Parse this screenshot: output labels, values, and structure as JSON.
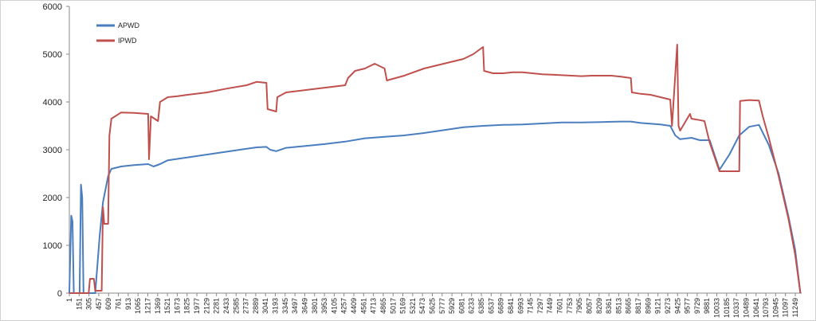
{
  "chart_data": {
    "type": "line",
    "title": "",
    "xlabel": "",
    "ylabel": "",
    "xlim": [
      1,
      11300
    ],
    "ylim": [
      0,
      6000
    ],
    "grid": false,
    "legend": "top-left",
    "y_ticks": [
      "0",
      "1000",
      "2000",
      "3000",
      "4000",
      "5000",
      "6000"
    ],
    "x_tick_labels": [
      "1",
      "151",
      "305",
      "457",
      "609",
      "761",
      "913",
      "1065",
      "1217",
      "1369",
      "1521",
      "1673",
      "1825",
      "1977",
      "2129",
      "2281",
      "2433",
      "2585",
      "2737",
      "2889",
      "3041",
      "3193",
      "3345",
      "3497",
      "3649",
      "3801",
      "3953",
      "4105",
      "4257",
      "4409",
      "4561",
      "4713",
      "4865",
      "5017",
      "5169",
      "5321",
      "5473",
      "5625",
      "5777",
      "5929",
      "6081",
      "6233",
      "6385",
      "6537",
      "6689",
      "6841",
      "6993",
      "7145",
      "7297",
      "7449",
      "7601",
      "7753",
      "7905",
      "8057",
      "8209",
      "8361",
      "8513",
      "8665",
      "8817",
      "8969",
      "9121",
      "9273",
      "9425",
      "9577",
      "9729",
      "9881",
      "10033",
      "10185",
      "10337",
      "10489",
      "10641",
      "10793",
      "10945",
      "11097",
      "11249"
    ],
    "series": [
      {
        "name": "APWD",
        "color": "#4a7ebf",
        "points": [
          [
            1,
            0
          ],
          [
            30,
            1620
          ],
          [
            50,
            1500
          ],
          [
            70,
            0
          ],
          [
            160,
            0
          ],
          [
            180,
            2270
          ],
          [
            200,
            2000
          ],
          [
            220,
            0
          ],
          [
            400,
            0
          ],
          [
            470,
            1200
          ],
          [
            520,
            1900
          ],
          [
            600,
            2450
          ],
          [
            650,
            2600
          ],
          [
            800,
            2650
          ],
          [
            1000,
            2680
          ],
          [
            1217,
            2700
          ],
          [
            1300,
            2650
          ],
          [
            1400,
            2700
          ],
          [
            1521,
            2780
          ],
          [
            1825,
            2840
          ],
          [
            2129,
            2900
          ],
          [
            2433,
            2960
          ],
          [
            2737,
            3020
          ],
          [
            2889,
            3050
          ],
          [
            3041,
            3060
          ],
          [
            3100,
            3000
          ],
          [
            3193,
            2970
          ],
          [
            3345,
            3040
          ],
          [
            3649,
            3080
          ],
          [
            3953,
            3120
          ],
          [
            4257,
            3170
          ],
          [
            4561,
            3240
          ],
          [
            4865,
            3270
          ],
          [
            5169,
            3300
          ],
          [
            5473,
            3350
          ],
          [
            5777,
            3410
          ],
          [
            6081,
            3470
          ],
          [
            6385,
            3500
          ],
          [
            6689,
            3520
          ],
          [
            6993,
            3530
          ],
          [
            7297,
            3550
          ],
          [
            7601,
            3570
          ],
          [
            7905,
            3570
          ],
          [
            8209,
            3580
          ],
          [
            8513,
            3590
          ],
          [
            8665,
            3590
          ],
          [
            8817,
            3560
          ],
          [
            9121,
            3530
          ],
          [
            9273,
            3500
          ],
          [
            9350,
            3300
          ],
          [
            9425,
            3220
          ],
          [
            9600,
            3250
          ],
          [
            9729,
            3200
          ],
          [
            9881,
            3200
          ],
          [
            10033,
            2580
          ],
          [
            10185,
            2900
          ],
          [
            10337,
            3300
          ],
          [
            10489,
            3480
          ],
          [
            10641,
            3520
          ],
          [
            10793,
            3100
          ],
          [
            10945,
            2500
          ],
          [
            11097,
            1600
          ],
          [
            11200,
            900
          ],
          [
            11280,
            0
          ]
        ]
      },
      {
        "name": "IPWD",
        "color": "#c0504d",
        "points": [
          [
            1,
            0
          ],
          [
            300,
            0
          ],
          [
            320,
            300
          ],
          [
            380,
            300
          ],
          [
            400,
            50
          ],
          [
            500,
            50
          ],
          [
            520,
            1800
          ],
          [
            540,
            1450
          ],
          [
            600,
            1450
          ],
          [
            620,
            3300
          ],
          [
            650,
            3650
          ],
          [
            800,
            3780
          ],
          [
            1000,
            3770
          ],
          [
            1217,
            3750
          ],
          [
            1230,
            2800
          ],
          [
            1260,
            3700
          ],
          [
            1369,
            3600
          ],
          [
            1400,
            4000
          ],
          [
            1521,
            4100
          ],
          [
            1673,
            4120
          ],
          [
            1825,
            4150
          ],
          [
            2129,
            4200
          ],
          [
            2433,
            4280
          ],
          [
            2737,
            4350
          ],
          [
            2889,
            4420
          ],
          [
            3041,
            4400
          ],
          [
            3060,
            3850
          ],
          [
            3193,
            3800
          ],
          [
            3210,
            4100
          ],
          [
            3345,
            4200
          ],
          [
            3649,
            4250
          ],
          [
            3953,
            4300
          ],
          [
            4257,
            4350
          ],
          [
            4300,
            4500
          ],
          [
            4409,
            4650
          ],
          [
            4561,
            4700
          ],
          [
            4713,
            4800
          ],
          [
            4865,
            4700
          ],
          [
            4900,
            4450
          ],
          [
            5169,
            4550
          ],
          [
            5473,
            4700
          ],
          [
            5777,
            4800
          ],
          [
            6081,
            4900
          ],
          [
            6233,
            5000
          ],
          [
            6385,
            5150
          ],
          [
            6400,
            4650
          ],
          [
            6537,
            4600
          ],
          [
            6689,
            4600
          ],
          [
            6841,
            4620
          ],
          [
            6993,
            4620
          ],
          [
            7145,
            4600
          ],
          [
            7297,
            4580
          ],
          [
            7449,
            4570
          ],
          [
            7601,
            4560
          ],
          [
            7753,
            4550
          ],
          [
            7905,
            4540
          ],
          [
            8057,
            4550
          ],
          [
            8209,
            4550
          ],
          [
            8361,
            4550
          ],
          [
            8513,
            4530
          ],
          [
            8665,
            4500
          ],
          [
            8680,
            4200
          ],
          [
            8817,
            4170
          ],
          [
            8969,
            4150
          ],
          [
            9121,
            4100
          ],
          [
            9273,
            4050
          ],
          [
            9300,
            3500
          ],
          [
            9380,
            5200
          ],
          [
            9400,
            3500
          ],
          [
            9425,
            3400
          ],
          [
            9577,
            3750
          ],
          [
            9600,
            3650
          ],
          [
            9729,
            3620
          ],
          [
            9800,
            3600
          ],
          [
            9881,
            3150
          ],
          [
            10033,
            2550
          ],
          [
            10185,
            2550
          ],
          [
            10337,
            2550
          ],
          [
            10350,
            4020
          ],
          [
            10489,
            4040
          ],
          [
            10641,
            4030
          ],
          [
            10700,
            3700
          ],
          [
            10793,
            3250
          ],
          [
            10945,
            2450
          ],
          [
            11097,
            1550
          ],
          [
            11200,
            800
          ],
          [
            11280,
            0
          ]
        ]
      }
    ]
  }
}
